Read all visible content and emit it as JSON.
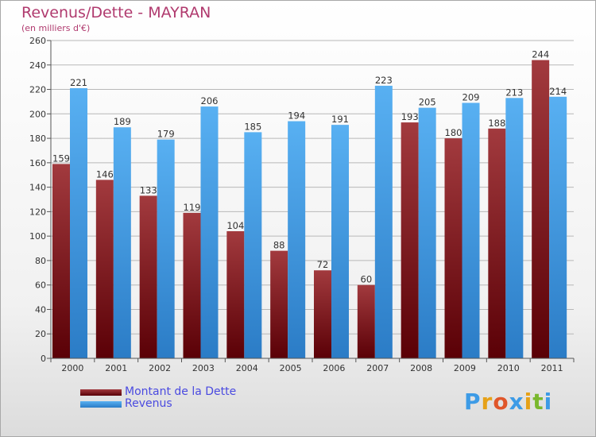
{
  "title": "Revenus/Dette - MAYRAN",
  "subtitle": "(en milliers d'€)",
  "colors": {
    "debt": "#8b1f24",
    "revenue": "#3d9be6",
    "grid": "#b8b8b8",
    "title": "#b03a6e",
    "legend_text": "#4a4ae0"
  },
  "chart_data": {
    "type": "bar",
    "title": "Revenus/Dette - MAYRAN",
    "ylabel": "(en milliers d'€)",
    "xlabel": "",
    "categories": [
      "2000",
      "2001",
      "2002",
      "2003",
      "2004",
      "2005",
      "2006",
      "2007",
      "2008",
      "2009",
      "2010",
      "2011"
    ],
    "ylim": [
      0,
      260
    ],
    "yticks": [
      0,
      20,
      40,
      60,
      80,
      100,
      120,
      140,
      160,
      180,
      200,
      220,
      240,
      260
    ],
    "grid": true,
    "legend_position": "bottom-left",
    "series": [
      {
        "name": "Montant de la Dette",
        "values": [
          159,
          146,
          133,
          119,
          104,
          88,
          72,
          60,
          193,
          180,
          188,
          244
        ]
      },
      {
        "name": "Revenus",
        "values": [
          221,
          189,
          179,
          206,
          185,
          194,
          191,
          223,
          205,
          209,
          213,
          214
        ]
      }
    ]
  },
  "legend": {
    "items": [
      {
        "label": "Montant de la Dette"
      },
      {
        "label": "Revenus"
      }
    ]
  },
  "brand": {
    "letters": [
      "P",
      "r",
      "o",
      "x",
      "i",
      "t",
      "i"
    ],
    "letter_colors": [
      "#3d9be6",
      "#e6a118",
      "#e0562a",
      "#3d9be6",
      "#e6a118",
      "#7ab82e",
      "#3d9be6"
    ]
  }
}
